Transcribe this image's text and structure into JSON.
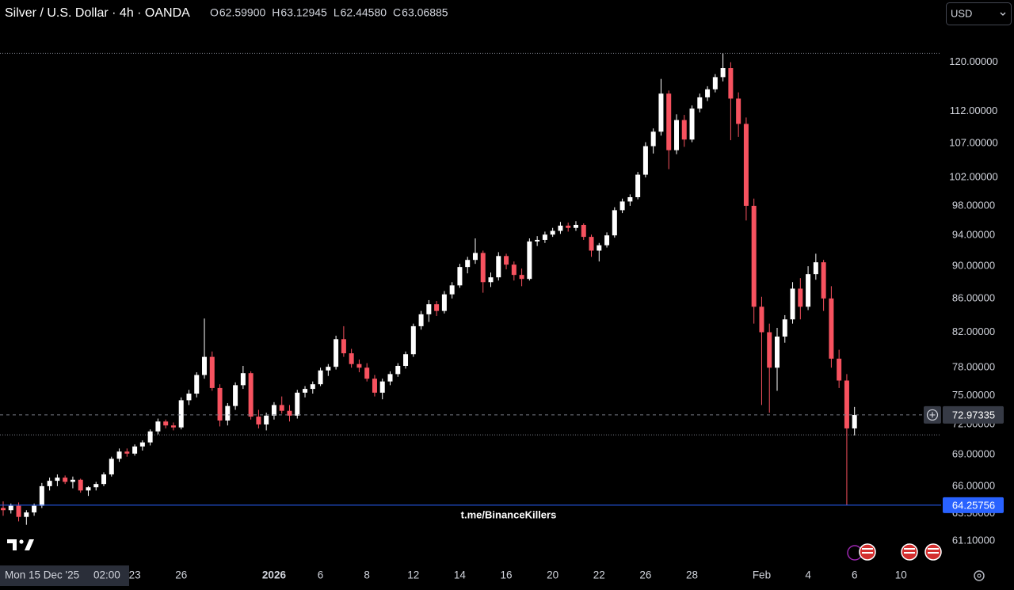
{
  "chart_data": {
    "type": "candlestick",
    "title": "Silver / U.S. Dollar · 4h · OANDA",
    "ohlc_legend": [
      {
        "key": "O",
        "text": "62.59900"
      },
      {
        "key": "H",
        "text": "63.12945"
      },
      {
        "key": "L",
        "text": "62.44580"
      },
      {
        "key": "C",
        "text": "63.06885"
      }
    ],
    "currency": "USD",
    "watermark": "t.me/BinanceKillers",
    "crosshair_label": {
      "date": "Mon 15 Dec '25",
      "time": "02:00"
    },
    "up_color": "#ffffff",
    "down_color": "#f7525f",
    "log_scale": true,
    "ylim": [
      59.15,
      131.0
    ],
    "yticks": [
      {
        "value": 120,
        "label": "120.00000"
      },
      {
        "value": 112,
        "label": "112.00000"
      },
      {
        "value": 107,
        "label": "107.00000"
      },
      {
        "value": 102,
        "label": "102.00000"
      },
      {
        "value": 98,
        "label": "98.00000"
      },
      {
        "value": 94,
        "label": "94.00000"
      },
      {
        "value": 90,
        "label": "90.00000"
      },
      {
        "value": 86,
        "label": "86.00000"
      },
      {
        "value": 82,
        "label": "82.00000"
      },
      {
        "value": 78,
        "label": "78.00000"
      },
      {
        "value": 75,
        "label": "75.00000"
      },
      {
        "value": 72,
        "label": "72.00000"
      },
      {
        "value": 69,
        "label": "69.00000"
      },
      {
        "value": 66,
        "label": "66.00000"
      },
      {
        "value": 63.5,
        "label": "63.50000"
      },
      {
        "value": 61.1,
        "label": "61.10000"
      }
    ],
    "current_price": 72.97335,
    "horizontal_line": {
      "value": 64.25756,
      "color": "#2962ff"
    },
    "levels": [
      121.5,
      70.95
    ],
    "categories": [
      null,
      null,
      null,
      null,
      null,
      null,
      null,
      null,
      null,
      null,
      null,
      null,
      null,
      null,
      null,
      null,
      null,
      "23",
      null,
      null,
      null,
      null,
      null,
      "26",
      null,
      null,
      null,
      null,
      null,
      null,
      null,
      null,
      null,
      null,
      null,
      "2026",
      null,
      null,
      null,
      null,
      null,
      "6",
      null,
      null,
      null,
      null,
      null,
      "8",
      null,
      null,
      null,
      null,
      null,
      "12",
      null,
      null,
      null,
      null,
      null,
      "14",
      null,
      null,
      null,
      null,
      null,
      "16",
      null,
      null,
      null,
      null,
      null,
      "20",
      null,
      null,
      null,
      null,
      null,
      "22",
      null,
      null,
      null,
      null,
      null,
      "26",
      null,
      null,
      null,
      null,
      null,
      "28",
      null,
      null,
      null,
      null,
      null,
      null,
      null,
      null,
      "Feb",
      null,
      null,
      null,
      null,
      null,
      "4",
      null,
      null,
      null,
      null,
      null,
      "6",
      null,
      null,
      null,
      null,
      null,
      "10"
    ],
    "ohlc": [
      [
        64,
        64.6,
        63.3,
        63.8
      ],
      [
        63.8,
        64.4,
        63.5,
        64.2
      ],
      [
        64.2,
        64.5,
        62.8,
        63.2
      ],
      [
        63.2,
        63.8,
        62.5,
        63.6
      ],
      [
        63.6,
        64.4,
        63.3,
        64.2
      ],
      [
        64.2,
        66.3,
        64,
        66
      ],
      [
        66,
        66.8,
        65.6,
        66.5
      ],
      [
        66.5,
        67.1,
        66,
        66.8
      ],
      [
        66.8,
        67,
        66.2,
        66.4
      ],
      [
        66.4,
        66.9,
        65.8,
        66.6
      ],
      [
        66.6,
        66.7,
        65.4,
        65.6
      ],
      [
        65.6,
        66,
        65.1,
        65.9
      ],
      [
        65.9,
        66.4,
        65.6,
        66.2
      ],
      [
        66.2,
        67.3,
        66,
        67.1
      ],
      [
        67.1,
        68.8,
        66.9,
        68.6
      ],
      [
        68.6,
        69.6,
        68.3,
        69.3
      ],
      [
        69.3,
        69.6,
        68.8,
        69.1
      ],
      [
        69.1,
        70,
        68.9,
        69.8
      ],
      [
        69.8,
        70.4,
        69.4,
        70.2
      ],
      [
        70.2,
        71.5,
        69.9,
        71.3
      ],
      [
        71.3,
        72.6,
        71,
        72.3
      ],
      [
        72.3,
        72.5,
        71.6,
        71.9
      ],
      [
        71.9,
        72.2,
        71.4,
        71.7
      ],
      [
        71.7,
        74.8,
        71.5,
        74.5
      ],
      [
        74.5,
        75.6,
        74,
        75.2
      ],
      [
        75.2,
        77.5,
        74.8,
        77.2
      ],
      [
        77.2,
        83.6,
        76.8,
        79.2
      ],
      [
        79.2,
        79.8,
        75.5,
        75.8
      ],
      [
        75.8,
        76.2,
        71.8,
        72.4
      ],
      [
        72.4,
        74.2,
        71.9,
        73.9
      ],
      [
        73.9,
        76.4,
        73.5,
        76.1
      ],
      [
        76.1,
        78.2,
        75.7,
        77.4
      ],
      [
        77.4,
        77.6,
        72.5,
        72.8
      ],
      [
        72.8,
        73.5,
        71.6,
        72
      ],
      [
        72,
        73.2,
        71.4,
        72.9
      ],
      [
        72.9,
        74.3,
        72.5,
        74
      ],
      [
        74,
        74.9,
        73.1,
        73.4
      ],
      [
        73.4,
        74,
        72.3,
        72.9
      ],
      [
        72.9,
        75.6,
        72.6,
        75.3
      ],
      [
        75.3,
        76,
        74.8,
        75.7
      ],
      [
        75.7,
        76.5,
        75.2,
        76.2
      ],
      [
        76.2,
        78,
        76,
        77.7
      ],
      [
        77.7,
        78.4,
        77.1,
        78.1
      ],
      [
        78.1,
        81.6,
        77.8,
        81.2
      ],
      [
        81.2,
        82.7,
        79.2,
        79.6
      ],
      [
        79.6,
        80.1,
        78,
        78.4
      ],
      [
        78.4,
        78.9,
        77.5,
        78
      ],
      [
        78,
        78.5,
        76.5,
        76.8
      ],
      [
        76.8,
        77.2,
        74.9,
        75.3
      ],
      [
        75.3,
        76.8,
        74.6,
        76.5
      ],
      [
        76.5,
        77.6,
        76.1,
        77.3
      ],
      [
        77.3,
        78.5,
        77,
        78.2
      ],
      [
        78.2,
        79.8,
        77.9,
        79.5
      ],
      [
        79.5,
        83,
        79.2,
        82.7
      ],
      [
        82.7,
        84.5,
        82.3,
        84.1
      ],
      [
        84.1,
        85.8,
        83.2,
        85.3
      ],
      [
        85.3,
        85.7,
        83.9,
        84.5
      ],
      [
        84.5,
        86.9,
        84.2,
        86.5
      ],
      [
        86.5,
        88,
        86,
        87.6
      ],
      [
        87.6,
        90.3,
        87.3,
        89.9
      ],
      [
        89.9,
        91.2,
        89.1,
        90.8
      ],
      [
        90.8,
        93.6,
        90.3,
        91.7
      ],
      [
        91.7,
        92,
        86.7,
        88
      ],
      [
        88,
        89.2,
        87.4,
        88.6
      ],
      [
        88.6,
        91.8,
        88.2,
        91.3
      ],
      [
        91.3,
        91.6,
        89.6,
        90.2
      ],
      [
        90.2,
        90.6,
        88.2,
        88.9
      ],
      [
        88.9,
        89.7,
        87.5,
        88.4
      ],
      [
        88.4,
        93.6,
        88.2,
        93.2
      ],
      [
        93.2,
        93.9,
        92.6,
        93.4
      ],
      [
        93.4,
        94.5,
        93,
        94.1
      ],
      [
        94.1,
        95,
        93.8,
        94.6
      ],
      [
        94.6,
        95.8,
        94.2,
        95.3
      ],
      [
        95.3,
        95.7,
        94.5,
        95
      ],
      [
        95,
        95.9,
        94.6,
        95.4
      ],
      [
        95.4,
        95.6,
        93.4,
        93.8
      ],
      [
        93.8,
        94.1,
        91.2,
        92
      ],
      [
        92,
        93,
        90.6,
        92.7
      ],
      [
        92.7,
        94.4,
        92.4,
        94
      ],
      [
        94,
        97.8,
        93.7,
        97.4
      ],
      [
        97.4,
        99,
        97,
        98.6
      ],
      [
        98.6,
        99.6,
        98,
        99.2
      ],
      [
        99.2,
        102.8,
        98.9,
        102.4
      ],
      [
        102.4,
        107.2,
        102,
        106.6
      ],
      [
        106.6,
        109.3,
        105.5,
        108.8
      ],
      [
        108.8,
        117.2,
        108.2,
        114.8
      ],
      [
        114.8,
        115.3,
        103.2,
        106
      ],
      [
        106,
        111.5,
        105.4,
        110.6
      ],
      [
        110.6,
        111.4,
        106.5,
        107.6
      ],
      [
        107.6,
        112.9,
        107.2,
        112.4
      ],
      [
        112.4,
        114.8,
        111.8,
        114.2
      ],
      [
        114.2,
        116,
        113.6,
        115.5
      ],
      [
        115.5,
        118,
        115,
        117.5
      ],
      [
        117.5,
        121.5,
        116.8,
        119
      ],
      [
        119,
        120,
        107.5,
        114
      ],
      [
        114,
        115,
        108,
        110
      ],
      [
        110,
        111,
        96,
        98
      ],
      [
        98,
        99,
        83,
        85
      ],
      [
        85,
        86.2,
        74,
        82
      ],
      [
        82,
        83,
        73.2,
        78
      ],
      [
        78,
        82.5,
        75.5,
        81.5
      ],
      [
        81.5,
        84,
        80.8,
        83.5
      ],
      [
        83.5,
        88,
        83,
        87.2
      ],
      [
        87.2,
        88.5,
        83.5,
        85
      ],
      [
        85,
        90,
        84.6,
        89
      ],
      [
        89,
        91.6,
        88.3,
        90.5
      ],
      [
        90.5,
        90.8,
        84.5,
        86
      ],
      [
        86,
        87.5,
        78,
        79
      ],
      [
        79,
        80,
        75.8,
        76.6
      ],
      [
        76.6,
        77.3,
        64.26,
        71.6
      ],
      [
        71.6,
        73.8,
        70.9,
        72.97
      ],
      null,
      null,
      null,
      null,
      null,
      null
    ]
  }
}
